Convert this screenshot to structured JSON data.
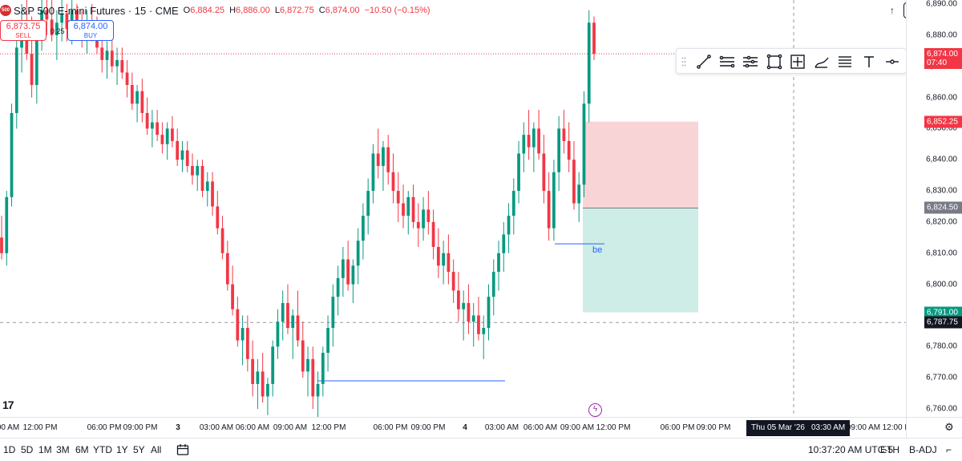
{
  "header": {
    "symbol_logo": "500",
    "title": "S&P 500 E-mini Futures · 15 · CME",
    "open_key": "O",
    "open": "6,884.25",
    "high_key": "H",
    "high": "6,886.00",
    "low_key": "L",
    "low": "6,872.75",
    "close_key": "C",
    "close": "6,874.00",
    "change": "−10.50 (−0.15%)"
  },
  "trade": {
    "sell_price": "6,873.75",
    "sell_label": "SELL",
    "spread": "0.25",
    "buy_price": "6,874.00",
    "buy_label": "BUY"
  },
  "price_scale": {
    "ticks": [
      "6,890.00",
      "6,880.00",
      "6,870.00",
      "6,860.00",
      "6,850.00",
      "6,840.00",
      "6,830.00",
      "6,820.00",
      "6,810.00",
      "6,800.00",
      "6,790.00",
      "6,780.00",
      "6,770.00",
      "6,760.00"
    ],
    "last_price": "6,874.00",
    "countdown": "07:40",
    "stop_price": "6,852.25",
    "entry_price": "6,824.50",
    "target_price": "6,791.00",
    "crosshair_price": "6,787.75"
  },
  "time_axis": {
    "labels": [
      "00 AM",
      "12:00 PM",
      "06:00 PM",
      "09:00 PM",
      "3",
      "03:00 AM",
      "06:00 AM",
      "09:00 AM",
      "12:00 PM",
      "06:00 PM",
      "09:00 PM",
      "4",
      "03:00 AM",
      "06:00 AM",
      "09:00 AM",
      "12:00 PM",
      "06:00 PM",
      "09:00 PM",
      "03:30 AM",
      "09:00 AM",
      "12:00 PM"
    ],
    "crosshair_date": "Thu 05 Mar '26"
  },
  "annotations": {
    "be_label": "be"
  },
  "tv_logo": "17",
  "bottom_bar": {
    "ranges": [
      "1D",
      "5D",
      "1M",
      "3M",
      "6M",
      "YTD",
      "1Y",
      "5Y",
      "All"
    ],
    "clock": "10:37:20 AM UTC-5",
    "session": "ETH",
    "adjust": "B-ADJ"
  },
  "colors": {
    "up": "#089981",
    "down": "#f23645",
    "accent": "#2962ff",
    "stop_zone": "#f8c9cd",
    "target_zone": "#c9ebe4",
    "entry_tag": "#787b86"
  },
  "icons": {
    "toolbar": [
      "grip-icon",
      "trend-line-icon",
      "parallel-channel-icon",
      "pitchfork-icon",
      "rectangle-icon",
      "price-range-icon",
      "brush-icon",
      "fib-icon",
      "text-icon",
      "horizontal-ray-icon"
    ]
  },
  "chart_data": {
    "type": "candlestick",
    "title": "",
    "ylim": [
      6756,
      6892
    ],
    "levels": {
      "last": 6874.0,
      "stop": 6852.25,
      "entry": 6824.5,
      "target": 6791.0,
      "crosshair": 6787.75
    },
    "candles": [
      [
        6815,
        6822,
        6808,
        6810
      ],
      [
        6810,
        6830,
        6806,
        6828
      ],
      [
        6828,
        6858,
        6825,
        6855
      ],
      [
        6855,
        6880,
        6850,
        6876
      ],
      [
        6876,
        6890,
        6868,
        6884
      ],
      [
        6884,
        6892,
        6872,
        6874
      ],
      [
        6874,
        6886,
        6860,
        6864
      ],
      [
        6864,
        6884,
        6858,
        6880
      ],
      [
        6880,
        6892,
        6875,
        6888
      ],
      [
        6888,
        6892,
        6880,
        6885
      ],
      [
        6885,
        6892,
        6878,
        6880
      ],
      [
        6880,
        6888,
        6872,
        6884
      ],
      [
        6884,
        6892,
        6878,
        6887
      ],
      [
        6887,
        6890,
        6878,
        6882
      ],
      [
        6882,
        6892,
        6877,
        6888
      ],
      [
        6888,
        6890,
        6880,
        6884
      ],
      [
        6884,
        6888,
        6876,
        6880
      ],
      [
        6880,
        6888,
        6874,
        6884
      ],
      [
        6884,
        6890,
        6878,
        6882
      ],
      [
        6882,
        6886,
        6874,
        6876
      ],
      [
        6876,
        6882,
        6868,
        6872
      ],
      [
        6872,
        6878,
        6866,
        6875
      ],
      [
        6875,
        6880,
        6868,
        6870
      ],
      [
        6870,
        6876,
        6864,
        6872
      ],
      [
        6872,
        6876,
        6866,
        6868
      ],
      [
        6868,
        6872,
        6860,
        6864
      ],
      [
        6864,
        6868,
        6856,
        6858
      ],
      [
        6858,
        6864,
        6852,
        6862
      ],
      [
        6862,
        6866,
        6852,
        6855
      ],
      [
        6855,
        6860,
        6848,
        6850
      ],
      [
        6850,
        6856,
        6844,
        6852
      ],
      [
        6852,
        6856,
        6846,
        6848
      ],
      [
        6848,
        6852,
        6842,
        6845
      ],
      [
        6845,
        6852,
        6840,
        6850
      ],
      [
        6850,
        6854,
        6844,
        6846
      ],
      [
        6846,
        6850,
        6838,
        6840
      ],
      [
        6840,
        6846,
        6836,
        6843
      ],
      [
        6843,
        6846,
        6836,
        6838
      ],
      [
        6838,
        6842,
        6832,
        6835
      ],
      [
        6835,
        6840,
        6830,
        6838
      ],
      [
        6838,
        6840,
        6828,
        6830
      ],
      [
        6830,
        6836,
        6825,
        6833
      ],
      [
        6833,
        6836,
        6822,
        6825
      ],
      [
        6825,
        6830,
        6816,
        6818
      ],
      [
        6818,
        6822,
        6808,
        6810
      ],
      [
        6810,
        6814,
        6798,
        6800
      ],
      [
        6800,
        6806,
        6790,
        6792
      ],
      [
        6792,
        6796,
        6780,
        6782
      ],
      [
        6782,
        6790,
        6774,
        6786
      ],
      [
        6786,
        6790,
        6772,
        6776
      ],
      [
        6776,
        6782,
        6764,
        6768
      ],
      [
        6768,
        6776,
        6760,
        6772
      ],
      [
        6772,
        6778,
        6762,
        6764
      ],
      [
        6764,
        6770,
        6758,
        6768
      ],
      [
        6768,
        6782,
        6764,
        6780
      ],
      [
        6780,
        6792,
        6776,
        6788
      ],
      [
        6788,
        6798,
        6782,
        6794
      ],
      [
        6794,
        6800,
        6784,
        6786
      ],
      [
        6786,
        6792,
        6776,
        6790
      ],
      [
        6790,
        6798,
        6780,
        6782
      ],
      [
        6782,
        6788,
        6770,
        6772
      ],
      [
        6772,
        6780,
        6764,
        6776
      ],
      [
        6776,
        6780,
        6760,
        6764
      ],
      [
        6764,
        6772,
        6756,
        6768
      ],
      [
        6768,
        6780,
        6764,
        6778
      ],
      [
        6778,
        6790,
        6772,
        6786
      ],
      [
        6786,
        6800,
        6780,
        6796
      ],
      [
        6796,
        6806,
        6790,
        6802
      ],
      [
        6802,
        6812,
        6796,
        6808
      ],
      [
        6808,
        6814,
        6798,
        6800
      ],
      [
        6800,
        6808,
        6794,
        6806
      ],
      [
        6806,
        6818,
        6800,
        6814
      ],
      [
        6814,
        6826,
        6808,
        6822
      ],
      [
        6822,
        6834,
        6816,
        6830
      ],
      [
        6830,
        6845,
        6826,
        6842
      ],
      [
        6842,
        6850,
        6834,
        6838
      ],
      [
        6838,
        6846,
        6830,
        6844
      ],
      [
        6844,
        6848,
        6832,
        6836
      ],
      [
        6836,
        6842,
        6826,
        6830
      ],
      [
        6830,
        6836,
        6820,
        6826
      ],
      [
        6826,
        6832,
        6818,
        6822
      ],
      [
        6822,
        6830,
        6816,
        6828
      ],
      [
        6828,
        6832,
        6818,
        6820
      ],
      [
        6820,
        6826,
        6812,
        6818
      ],
      [
        6818,
        6828,
        6814,
        6824
      ],
      [
        6824,
        6830,
        6816,
        6820
      ],
      [
        6820,
        6824,
        6808,
        6812
      ],
      [
        6812,
        6818,
        6802,
        6806
      ],
      [
        6806,
        6814,
        6800,
        6810
      ],
      [
        6810,
        6816,
        6800,
        6804
      ],
      [
        6804,
        6808,
        6794,
        6798
      ],
      [
        6798,
        6804,
        6788,
        6792
      ],
      [
        6792,
        6798,
        6782,
        6794
      ],
      [
        6794,
        6800,
        6784,
        6788
      ],
      [
        6788,
        6794,
        6780,
        6790
      ],
      [
        6790,
        6796,
        6782,
        6784
      ],
      [
        6784,
        6790,
        6776,
        6786
      ],
      [
        6786,
        6800,
        6782,
        6796
      ],
      [
        6796,
        6808,
        6790,
        6804
      ],
      [
        6804,
        6814,
        6798,
        6810
      ],
      [
        6810,
        6820,
        6804,
        6816
      ],
      [
        6816,
        6826,
        6810,
        6822
      ],
      [
        6822,
        6834,
        6816,
        6830
      ],
      [
        6830,
        6846,
        6826,
        6842
      ],
      [
        6842,
        6852,
        6836,
        6848
      ],
      [
        6848,
        6856,
        6840,
        6844
      ],
      [
        6844,
        6852,
        6836,
        6850
      ],
      [
        6850,
        6856,
        6840,
        6842
      ],
      [
        6842,
        6848,
        6826,
        6830
      ],
      [
        6830,
        6836,
        6814,
        6818
      ],
      [
        6818,
        6840,
        6814,
        6836
      ],
      [
        6836,
        6854,
        6830,
        6850
      ],
      [
        6850,
        6856,
        6842,
        6846
      ],
      [
        6846,
        6852,
        6836,
        6840
      ],
      [
        6840,
        6846,
        6824,
        6826
      ],
      [
        6826,
        6836,
        6820,
        6832
      ],
      [
        6832,
        6862,
        6828,
        6858
      ],
      [
        6858,
        6888,
        6852,
        6884
      ],
      [
        6884,
        6886,
        6872,
        6874
      ]
    ]
  }
}
